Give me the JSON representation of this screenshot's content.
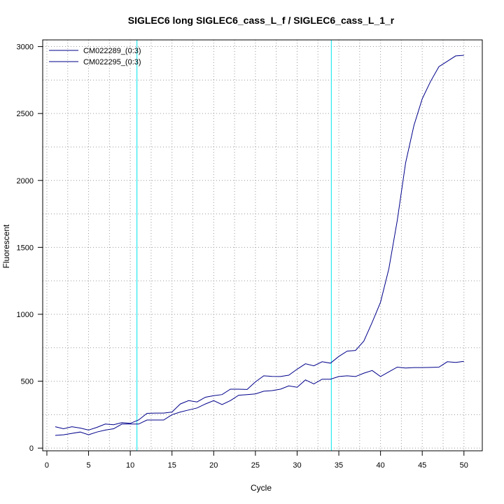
{
  "chart_data": {
    "type": "line",
    "title": "SIGLEC6 long SIGLEC6_cass_L_f / SIGLEC6_cass_L_1_r",
    "xlabel": "Cycle",
    "ylabel": "Fluorescent",
    "xlim": [
      -0.5,
      52.2
    ],
    "ylim": [
      -20,
      3050
    ],
    "xticks": [
      0,
      5,
      10,
      15,
      20,
      25,
      30,
      35,
      40,
      45,
      50
    ],
    "yticks": [
      0,
      500,
      1000,
      1500,
      2000,
      2500,
      3000
    ],
    "grid": true,
    "legend_position": "top-left",
    "vlines": [
      10.8,
      34.1
    ],
    "colors": {
      "series": "#00008B",
      "vline": "#00E5EE",
      "grid": "#9a9a9a",
      "axis": "#000000"
    },
    "x": [
      1,
      2,
      3,
      4,
      5,
      6,
      7,
      8,
      9,
      10,
      11,
      12,
      13,
      14,
      15,
      16,
      17,
      18,
      19,
      20,
      21,
      22,
      23,
      24,
      25,
      26,
      27,
      28,
      29,
      30,
      31,
      32,
      33,
      34,
      35,
      36,
      37,
      38,
      39,
      40,
      41,
      42,
      43,
      44,
      45,
      46,
      47,
      48,
      49,
      50
    ],
    "series": [
      {
        "name": "CM022289_(0:3)",
        "values": [
          160,
          145,
          160,
          150,
          135,
          155,
          180,
          175,
          190,
          185,
          210,
          260,
          262,
          262,
          270,
          330,
          355,
          345,
          380,
          392,
          400,
          440,
          440,
          438,
          495,
          540,
          536,
          535,
          545,
          590,
          630,
          615,
          645,
          635,
          685,
          725,
          730,
          800,
          940,
          1090,
          1340,
          1700,
          2130,
          2410,
          2610,
          2740,
          2850,
          2890,
          2930,
          2935
        ]
      },
      {
        "name": "CM022295_(0:3)",
        "values": [
          95,
          100,
          110,
          120,
          100,
          120,
          135,
          145,
          180,
          180,
          180,
          210,
          210,
          210,
          250,
          270,
          285,
          300,
          330,
          355,
          325,
          355,
          395,
          400,
          405,
          425,
          430,
          440,
          465,
          455,
          510,
          480,
          515,
          515,
          535,
          540,
          535,
          560,
          580,
          535,
          570,
          605,
          598,
          602,
          602,
          603,
          605,
          645,
          640,
          648
        ]
      }
    ]
  }
}
